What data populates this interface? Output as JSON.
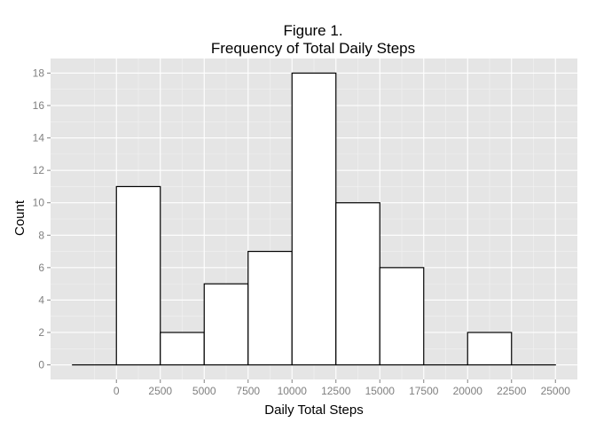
{
  "chart_data": {
    "type": "bar",
    "title_line1": "Figure 1.",
    "title_line2": "Frequency of Total Daily Steps",
    "xlabel": "Daily Total Steps",
    "ylabel": "Count",
    "bin_width": 2500,
    "bins": [
      {
        "start": -2500,
        "end": 0,
        "count": 0
      },
      {
        "start": 0,
        "end": 2500,
        "count": 11
      },
      {
        "start": 2500,
        "end": 5000,
        "count": 2
      },
      {
        "start": 5000,
        "end": 7500,
        "count": 5
      },
      {
        "start": 7500,
        "end": 10000,
        "count": 7
      },
      {
        "start": 10000,
        "end": 12500,
        "count": 18
      },
      {
        "start": 12500,
        "end": 15000,
        "count": 10
      },
      {
        "start": 15000,
        "end": 17500,
        "count": 6
      },
      {
        "start": 17500,
        "end": 20000,
        "count": 0
      },
      {
        "start": 20000,
        "end": 22500,
        "count": 2
      },
      {
        "start": 22500,
        "end": 25000,
        "count": 0
      }
    ],
    "xlim": [
      -3750,
      26250
    ],
    "ylim": [
      -0.9,
      18.9
    ],
    "x_ticks": [
      0,
      2500,
      5000,
      7500,
      10000,
      12500,
      15000,
      17500,
      20000,
      22500,
      25000
    ],
    "y_ticks": [
      0,
      2,
      4,
      6,
      8,
      10,
      12,
      14,
      16,
      18
    ],
    "grid": true,
    "colors": {
      "panel_bg": "#e5e5e5",
      "grid_major": "#ffffff",
      "grid_minor": "#f2f2f2",
      "bar_fill": "#ffffff",
      "bar_stroke": "#000000",
      "tick_text": "#7f7f7f",
      "tick_mark": "#7f7f7f"
    }
  }
}
